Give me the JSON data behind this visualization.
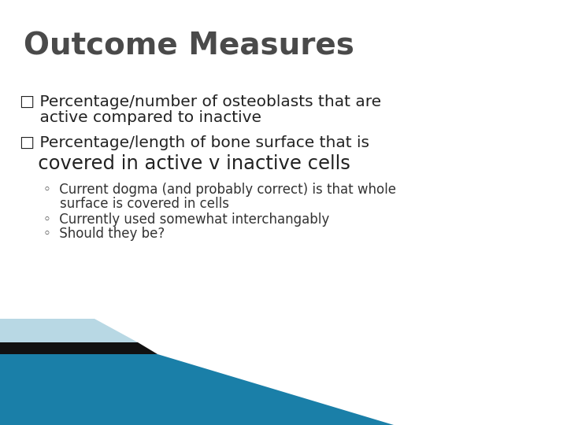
{
  "title": "Outcome Measures",
  "title_color": "#4a4a4a",
  "title_fontsize": 28,
  "title_font_weight": "bold",
  "background_color": "#ffffff",
  "bullet1_line1": "□ Percentage/number of osteoblasts that are",
  "bullet1_line2": "    active compared to inactive",
  "bullet2_line1": "□ Percentage/length of bone surface that is",
  "bullet2_line2": "   covered in active v inactive cells",
  "sub1": "◦  Current dogma (and probably correct) is that whole",
  "sub1b": "    surface is covered in cells",
  "sub2": "◦  Currently used somewhat interchangably",
  "sub3": "◦  Should they be?",
  "bullet_color": "#222222",
  "bullet_fontsize": 14.5,
  "sub_fontsize": 12,
  "sub_color": "#333333",
  "teal_color": "#1a7fa8",
  "dark_color": "#111111",
  "light_color": "#b8d8e4",
  "figsize": [
    7.2,
    5.4
  ],
  "dpi": 100
}
